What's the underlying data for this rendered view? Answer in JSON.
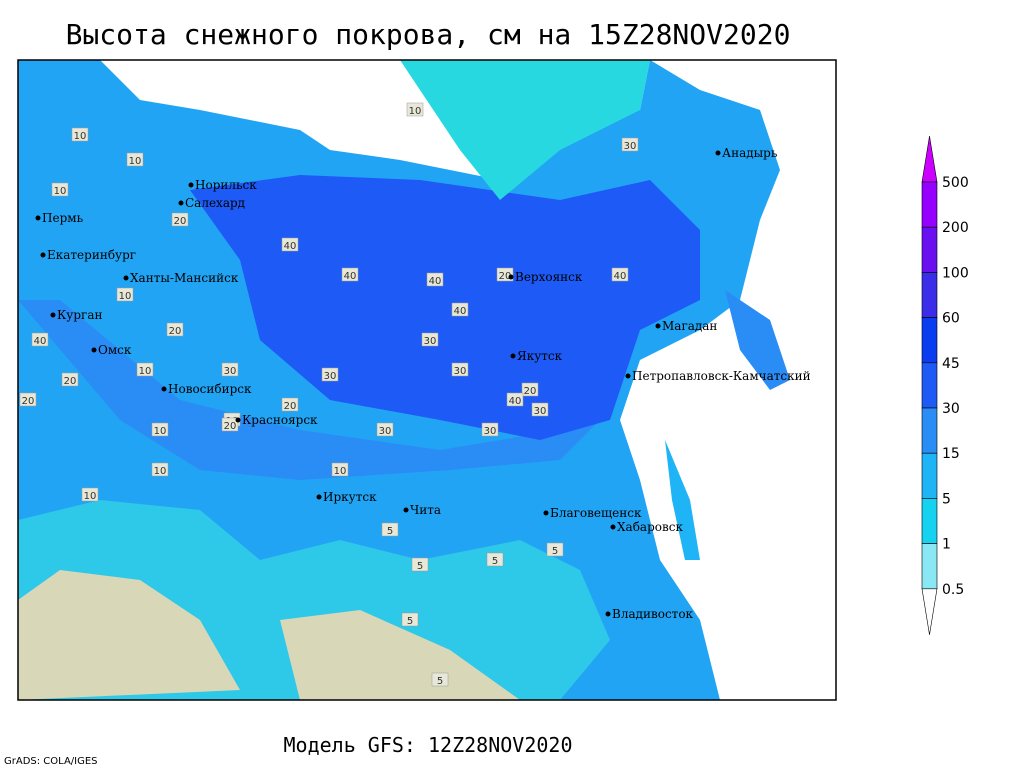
{
  "header": {
    "title": "Высота снежного покрова, см на 15Z28NOV2020"
  },
  "footer": {
    "model": "Модель GFS: 12Z28NOV2020",
    "credit": "GrADS: COLA/IGES"
  },
  "cities": [
    "Норильск",
    "Салехард",
    "Пермь",
    "Екатеринбург",
    "Ханты-Мансийск",
    "Курган",
    "Омск",
    "Новосибирск",
    "Красноярск",
    "Иркутск",
    "Чита",
    "Верхоянск",
    "Якутск",
    "Магадан",
    "Петропавловск-Камчатский",
    "Анадырь",
    "Благовещенск",
    "Хабаровск",
    "Владивосток"
  ],
  "colorbar": {
    "ticks": [
      500,
      200,
      100,
      60,
      45,
      30,
      15,
      5,
      1,
      0.5
    ],
    "colors": [
      "#cc00ff",
      "#9600ff",
      "#6a10f0",
      "#3a2ee8",
      "#0a3cf0",
      "#1e5af5",
      "#2a8cf5",
      "#1eb4f5",
      "#14d2f0",
      "#8ae8f4",
      "#ffffff"
    ]
  },
  "contour_labels": [
    10,
    10,
    10,
    10,
    10,
    10,
    20,
    20,
    30,
    40,
    40,
    40,
    40,
    40,
    30,
    30,
    30,
    30,
    30,
    20,
    20,
    20,
    10,
    10,
    20,
    20,
    5,
    5,
    5,
    5,
    10,
    20,
    30,
    40,
    30,
    40,
    10,
    5,
    5,
    10
  ]
}
